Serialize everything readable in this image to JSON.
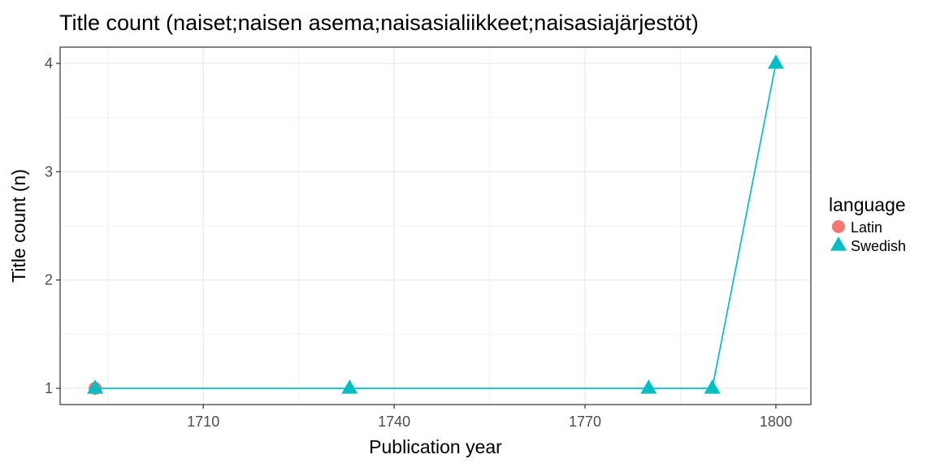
{
  "chart_data": {
    "type": "line",
    "title": "Title count (naiset;naisen asema;naisasialiikkeet;naisasiajärjestöt)",
    "xlabel": "Publication year",
    "ylabel": "Title count (n)",
    "xlim": [
      1687.5,
      1805.5
    ],
    "ylim": [
      0.85,
      4.15
    ],
    "x_ticks": [
      1710,
      1740,
      1770,
      1800
    ],
    "y_ticks": [
      1,
      2,
      3,
      4
    ],
    "grid": true,
    "legend": {
      "title": "language",
      "position": "right"
    },
    "series": [
      {
        "name": "Latin",
        "color": "#F8766D",
        "marker": "circle",
        "line": false,
        "points": [
          {
            "x": 1693,
            "y": 1
          }
        ]
      },
      {
        "name": "Swedish",
        "color": "#00BFC4",
        "marker": "triangle",
        "line": true,
        "points": [
          {
            "x": 1693,
            "y": 1
          },
          {
            "x": 1733,
            "y": 1
          },
          {
            "x": 1780,
            "y": 1
          },
          {
            "x": 1790,
            "y": 1
          },
          {
            "x": 1800,
            "y": 4
          }
        ]
      }
    ]
  }
}
